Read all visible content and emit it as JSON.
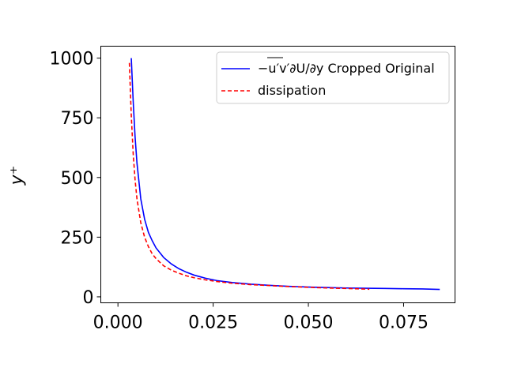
{
  "chart_data": {
    "type": "line",
    "title": "",
    "xlabel": "",
    "ylabel": "y⁺",
    "xlim": [
      -0.0045,
      0.0885
    ],
    "ylim": [
      -25,
      1050
    ],
    "xticks": [
      0.0,
      0.025,
      0.05,
      0.075
    ],
    "xtick_labels": [
      "0.000",
      "0.025",
      "0.050",
      "0.075"
    ],
    "yticks": [
      0,
      250,
      500,
      750,
      1000
    ],
    "ytick_labels": [
      "0",
      "250",
      "500",
      "750",
      "1000"
    ],
    "grid": false,
    "legend_position": "upper-right",
    "series": [
      {
        "name": "−u′v′∂U/∂y Cropped Original",
        "color": "#0000ff",
        "style": "solid",
        "x": [
          0.0035,
          0.004,
          0.0045,
          0.005,
          0.006,
          0.007,
          0.008,
          0.009,
          0.01,
          0.012,
          0.014,
          0.016,
          0.018,
          0.02,
          0.023,
          0.026,
          0.03,
          0.035,
          0.04,
          0.045,
          0.05,
          0.055,
          0.06,
          0.065,
          0.07,
          0.075,
          0.08,
          0.0845
        ],
        "y": [
          1000,
          820,
          670,
          560,
          410,
          325,
          270,
          235,
          205,
          165,
          138,
          118,
          103,
          91,
          78,
          68,
          60,
          53,
          48,
          44,
          41,
          39,
          37,
          36,
          35,
          34,
          33,
          31
        ]
      },
      {
        "name": "dissipation",
        "color": "#ff0000",
        "style": "dashed",
        "x": [
          0.003,
          0.0035,
          0.004,
          0.0045,
          0.005,
          0.006,
          0.007,
          0.008,
          0.009,
          0.01,
          0.012,
          0.014,
          0.016,
          0.018,
          0.02,
          0.023,
          0.026,
          0.03,
          0.035,
          0.04,
          0.045,
          0.05,
          0.055,
          0.06,
          0.066
        ],
        "y": [
          980,
          760,
          600,
          490,
          410,
          310,
          250,
          210,
          180,
          160,
          130,
          112,
          99,
          88,
          80,
          71,
          64,
          57,
          51,
          47,
          43,
          40,
          37,
          35,
          32
        ]
      }
    ]
  }
}
